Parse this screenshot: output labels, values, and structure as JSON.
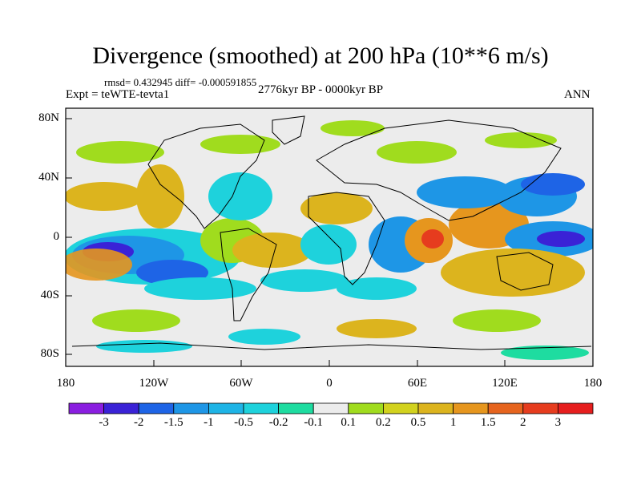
{
  "title": "Divergence (smoothed) at 200 hPa (10**6 m/s)",
  "stats": "rmsd= 0.432945 diff= -0.000591855",
  "experiment": "Expt = teWTE-tevta1",
  "period": "2776kyr BP - 0000kyr BP",
  "season": "ANN",
  "lat_labels": [
    "80N",
    "40N",
    "0",
    "40S",
    "80S"
  ],
  "lon_labels": [
    "180",
    "120W",
    "60W",
    "0",
    "60E",
    "120E",
    "180"
  ],
  "colorbar": {
    "labels": [
      "-3",
      "-2",
      "-1.5",
      "-1",
      "-0.5",
      "-0.2",
      "-0.1",
      "0.1",
      "0.2",
      "0.5",
      "1",
      "1.5",
      "2",
      "3"
    ],
    "colors": [
      "#8a1ee0",
      "#3a22d6",
      "#1e64e6",
      "#1e96e6",
      "#1eb4e6",
      "#1ed2dc",
      "#1edca0",
      "#ececec",
      "#a0dc1e",
      "#d2d21e",
      "#dcb41e",
      "#e6961e",
      "#e6641e",
      "#e63c1e",
      "#e61e1e"
    ]
  },
  "map": {
    "background": "#ececec",
    "coastline_color": "#000000"
  }
}
